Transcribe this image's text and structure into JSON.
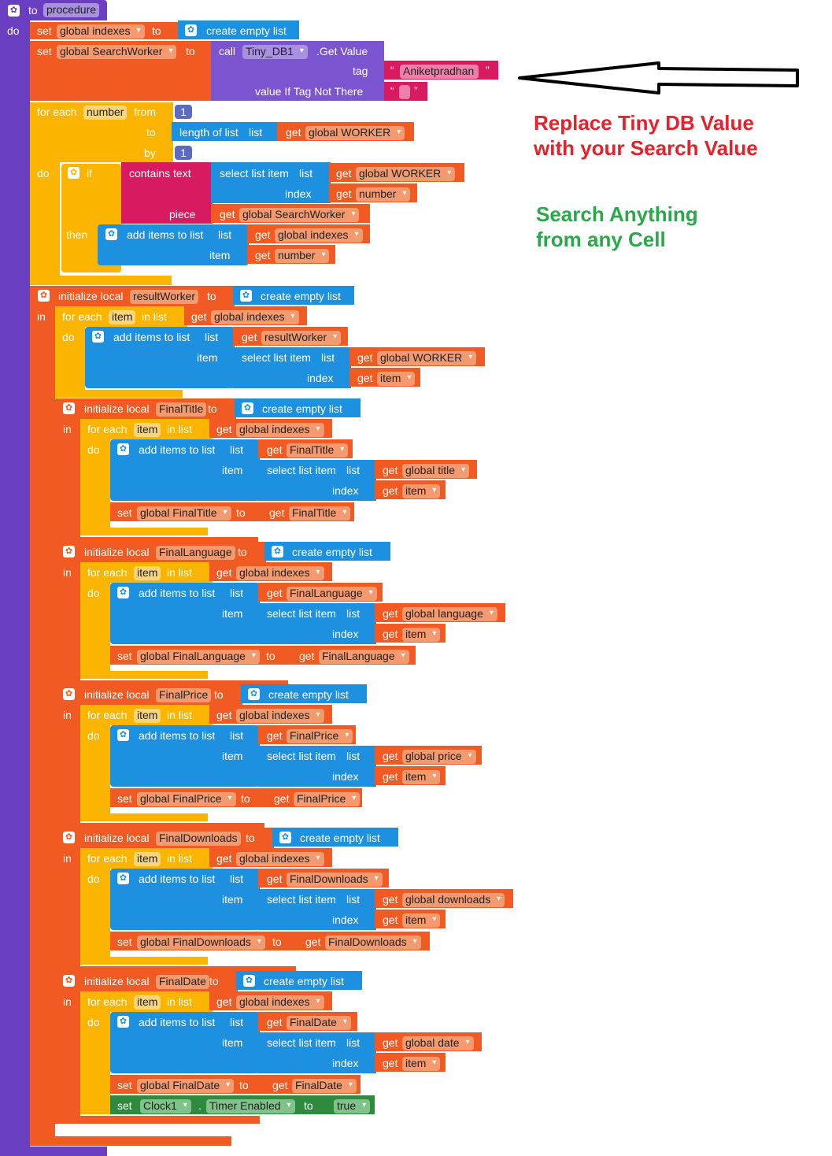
{
  "procedure": {
    "to": "to",
    "name": "procedure",
    "do": "do"
  },
  "kw": {
    "set": "set",
    "to": "to",
    "get": "get",
    "call": "call",
    "do": "do",
    "in": "in",
    "if": "if",
    "then": "then",
    "for_each": "for each",
    "from": "from",
    "by": "by",
    "in_list": "in list",
    "create_empty_list": "create empty list",
    "initialize_local": "initialize local",
    "add_items_to_list": "add items to list",
    "list": "list",
    "item": "item",
    "index": "index",
    "select_list_item": "select list item",
    "length_of_list": "length of list",
    "contains_text": "contains  text",
    "piece": "piece",
    "tag": "tag",
    "value_if_tag_not_there": "value If Tag Not There",
    "get_value": ".Get Value"
  },
  "vars": {
    "global_indexes": "global indexes",
    "global_searchworker": "global SearchWorker",
    "tinydb": "Tiny_DB1",
    "tag_value": "Aniketpradhan",
    "number": "number",
    "one": "1",
    "global_worker": "global WORKER",
    "resultworker": "resultWorker",
    "item": "item",
    "finaltitle": "FinalTitle",
    "global_title": "global title",
    "global_finaltitle": "global FinalTitle",
    "finallanguage": "FinalLanguage",
    "global_language": "global language",
    "global_finallanguage": "global FinalLanguage",
    "finalprice": "FinalPrice",
    "global_price": "global price",
    "global_finalprice": "global FinalPrice",
    "finaldownloads": "FinalDownloads",
    "global_downloads": "global downloads",
    "global_finaldownloads": "global FinalDownloads",
    "finaldate": "FinalDate",
    "global_date": "global date",
    "global_finaldate": "global FinalDate",
    "clock": "Clock1",
    "timer_enabled": "Timer Enabled",
    "true": "true"
  },
  "notes": {
    "replace_1": "Replace Tiny DB Value",
    "replace_2": "with your Search Value",
    "search_1": "Search Anything",
    "search_2": "from any Cell"
  },
  "colors": {
    "procedure": "#6a3ec0",
    "variable": "#f15a22",
    "control": "#fbb400",
    "list": "#1e90e0",
    "text": "#d81b60",
    "component": "#2e8b3e",
    "note_red": "#e8202a",
    "note_green": "#2aa84a"
  }
}
